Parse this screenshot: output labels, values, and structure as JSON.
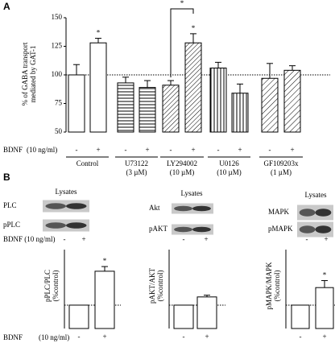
{
  "panel_labels": [
    "A",
    "B"
  ],
  "chart_data": [
    {
      "type": "bar",
      "ylabel": [
        "% of GABA transport",
        "mediated by GAT-1"
      ],
      "categories": [
        "-",
        "+",
        "-",
        "+",
        "-",
        "+",
        "-",
        "+",
        "-",
        "+"
      ],
      "values": [
        100,
        128,
        93,
        89,
        91,
        128,
        106,
        84,
        97,
        104
      ],
      "errors": [
        9,
        4,
        5,
        6,
        4,
        8,
        5,
        8,
        13,
        4
      ],
      "significance": [
        null,
        "*",
        null,
        null,
        null,
        "*",
        null,
        null,
        null,
        null
      ],
      "patterns": [
        "none",
        "none",
        "horizontal",
        "horizontal",
        "diagonal",
        "diagonal",
        "vertical",
        "vertical",
        "diagonal-wide",
        "diagonal-wide"
      ],
      "bracket": {
        "categories": [
          4,
          5
        ],
        "label": "*"
      },
      "groups": [
        {
          "name": "Control"
        },
        {
          "name": "U73122",
          "dose": "(3 µM)"
        },
        {
          "name": "LY294002",
          "dose": "(10 µM)"
        },
        {
          "name": "U0126",
          "dose": "(10 µM)"
        },
        {
          "name": "GF109203x",
          "dose": "(1 µM)"
        }
      ],
      "treatment_label": "BDNF",
      "treatment_dose": "(10 ng/ml)",
      "ylim": [
        50,
        150
      ],
      "yticks": [
        50,
        75,
        100,
        125,
        150
      ],
      "reference_line": 100,
      "color": "#ffffff"
    },
    {
      "type": "bar",
      "ylabel": [
        "pPLC/PLC",
        "(%control)"
      ],
      "categories": [
        "-",
        "+"
      ],
      "values": [
        100,
        158
      ],
      "errors": [
        null,
        8
      ],
      "significance": [
        null,
        "*"
      ],
      "ylim": [
        60,
        195
      ],
      "reference_line": 100,
      "color": "#ffffff"
    },
    {
      "type": "bar",
      "ylabel": [
        "pAKT/AKT",
        "(%control)"
      ],
      "categories": [
        "-",
        "+"
      ],
      "values": [
        100,
        114
      ],
      "errors": [
        null,
        3
      ],
      "significance": [
        null,
        null
      ],
      "ylim": [
        60,
        195
      ],
      "reference_line": 100,
      "color": "#ffffff"
    },
    {
      "type": "bar",
      "ylabel": [
        "pMAPK/MAPK",
        "(%control)"
      ],
      "categories": [
        "-",
        "+"
      ],
      "values": [
        100,
        130
      ],
      "errors": [
        null,
        12
      ],
      "significance": [
        null,
        "*"
      ],
      "ylim": [
        60,
        195
      ],
      "reference_line": 100,
      "color": "#ffffff"
    }
  ],
  "blots": [
    {
      "title": "Lysates",
      "rows": [
        "PLC",
        "pPLC"
      ],
      "signs": [
        "-",
        "+"
      ]
    },
    {
      "title": "Lysates",
      "rows": [
        "Akt",
        "pAKT"
      ],
      "signs": [
        "-",
        "+"
      ]
    },
    {
      "title": "Lysates",
      "rows": [
        "MAPK",
        "pMAPK"
      ],
      "signs": [
        "-",
        "+"
      ]
    }
  ],
  "blot_treatment": "BDNF (10 ng/ml)",
  "footer": {
    "treatment": "BDNF",
    "dose": "(10 ng/ml)"
  }
}
